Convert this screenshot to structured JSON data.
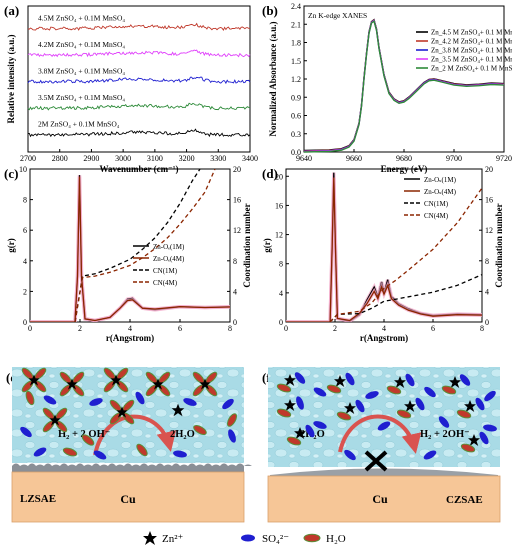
{
  "panels": {
    "a": {
      "label": "(a)"
    },
    "b": {
      "label": "(b)"
    },
    "c": {
      "label": "(c)"
    },
    "d": {
      "label": "(d)"
    },
    "e": {
      "label": "(e)"
    },
    "f": {
      "label": "(f)"
    }
  },
  "colors": {
    "black": "#000000",
    "red": "#c0392b",
    "darkred": "#8b2500",
    "magenta": "#e040fb",
    "blue": "#1f1fd0",
    "green": "#2e8b3a",
    "navy": "#1a237e",
    "electrolyte": "#a9dbe6",
    "cu": "#f6c697",
    "deposit": "#8a8f96",
    "arrow": "#d9534f"
  },
  "chart_data": [
    {
      "id": "a",
      "type": "line",
      "xlabel": "Wavenumber (cm⁻¹)",
      "ylabel": "Relative intensity (a.u.)",
      "xlim": [
        2700,
        3400
      ],
      "xticks": [
        2700,
        2800,
        2900,
        3000,
        3100,
        3200,
        3300,
        3400
      ],
      "series": [
        {
          "name": "4.5M ZnSO₄ + 0.1M MnSO₄",
          "color": "#c0392b",
          "offset": 5,
          "peak": 3220
        },
        {
          "name": "4.2M ZnSO₄ + 0.1M MnSO₄",
          "color": "#e040fb",
          "offset": 4,
          "peak": 3225
        },
        {
          "name": "3.8M ZnSO₄ + 0.1M MnSO₄",
          "color": "#1f1fd0",
          "offset": 3,
          "peak": 3230
        },
        {
          "name": "3.5M ZnSO₄ + 0.1M MnSO₄",
          "color": "#2e8b3a",
          "offset": 2,
          "peak": 3225
        },
        {
          "name": "2M ZnSO₄ + 0.1M MnSO₄",
          "color": "#000000",
          "offset": 1,
          "peak": 3220
        }
      ]
    },
    {
      "id": "b",
      "type": "line",
      "title": "Zn K-edge XANES",
      "xlabel": "Energy (eV)",
      "ylabel": "Normalized Absorbance (a.u.)",
      "xlim": [
        9640,
        9720
      ],
      "ylim": [
        0.0,
        2.4
      ],
      "xticks": [
        9640,
        9660,
        9680,
        9700,
        9720
      ],
      "yticks": [
        0.0,
        0.3,
        0.6,
        0.9,
        1.2,
        1.5,
        1.8,
        2.1,
        2.4
      ],
      "legend": "top-right",
      "series": [
        {
          "name": "Zn_4.5 M ZnSO₄+ 0.1 M MnSO₄",
          "color": "#000000"
        },
        {
          "name": "Zn_4.2 M ZnSO₄+ 0.1 M MnSO₄",
          "color": "#c0392b"
        },
        {
          "name": "Zn_3.8 M ZnSO₄+ 0.1 M MnSO₄",
          "color": "#1f1fd0"
        },
        {
          "name": "Zn_3.5 M ZnSO₄+ 0.1 M MnSO₄",
          "color": "#e040fb"
        },
        {
          "name": "Zn_2 M ZnSO₄+ 0.1 M MnSO₄",
          "color": "#2e8b3a"
        }
      ],
      "points": [
        [
          9640,
          0.0
        ],
        [
          9650,
          0.01
        ],
        [
          9655,
          0.03
        ],
        [
          9658,
          0.08
        ],
        [
          9660,
          0.18
        ],
        [
          9662,
          0.45
        ],
        [
          9663,
          0.75
        ],
        [
          9664,
          1.2
        ],
        [
          9665,
          1.6
        ],
        [
          9666,
          1.95
        ],
        [
          9667,
          2.12
        ],
        [
          9668,
          2.15
        ],
        [
          9669,
          2.0
        ],
        [
          9670,
          1.7
        ],
        [
          9672,
          1.25
        ],
        [
          9674,
          0.96
        ],
        [
          9676,
          0.85
        ],
        [
          9678,
          0.8
        ],
        [
          9680,
          0.82
        ],
        [
          9682,
          0.88
        ],
        [
          9685,
          1.0
        ],
        [
          9688,
          1.12
        ],
        [
          9690,
          1.17
        ],
        [
          9692,
          1.18
        ],
        [
          9695,
          1.15
        ],
        [
          9700,
          1.1
        ],
        [
          9705,
          1.08
        ],
        [
          9710,
          1.09
        ],
        [
          9715,
          1.11
        ],
        [
          9720,
          1.1
        ]
      ]
    },
    {
      "id": "c",
      "type": "line",
      "xlabel": "r(Angstrom)",
      "ylabel": "g(r)",
      "y2label": "Coordination number",
      "xlim": [
        0,
        8
      ],
      "ylim": [
        0,
        10
      ],
      "y2lim": [
        0,
        20
      ],
      "xticks": [
        0,
        2,
        4,
        6,
        8
      ],
      "yticks": [
        0,
        2,
        4,
        6,
        8,
        10
      ],
      "y2ticks": [
        0,
        4,
        8,
        12,
        16,
        20
      ],
      "legend": "right",
      "series": [
        {
          "name": "Zn-Oₑ(1M)",
          "color": "#000000",
          "dash": false,
          "axis": "left",
          "points": [
            [
              0,
              0
            ],
            [
              1.8,
              0
            ],
            [
              1.9,
              3
            ],
            [
              1.98,
              9.6
            ],
            [
              2.06,
              3
            ],
            [
              2.2,
              0.2
            ],
            [
              2.6,
              0.1
            ],
            [
              3.2,
              0.3
            ],
            [
              3.6,
              0.9
            ],
            [
              3.9,
              1.5
            ],
            [
              4.1,
              1.55
            ],
            [
              4.5,
              0.9
            ],
            [
              5,
              0.8
            ],
            [
              6,
              1.0
            ],
            [
              7,
              0.95
            ],
            [
              8,
              1.0
            ]
          ]
        },
        {
          "name": "Zn-Oₑ(4M)",
          "color": "#8b2500",
          "dash": false,
          "axis": "left",
          "points": [
            [
              0,
              0
            ],
            [
              1.8,
              0
            ],
            [
              1.9,
              3
            ],
            [
              1.98,
              9.5
            ],
            [
              2.06,
              3
            ],
            [
              2.2,
              0.2
            ],
            [
              2.6,
              0.1
            ],
            [
              3.2,
              0.3
            ],
            [
              3.6,
              0.9
            ],
            [
              3.9,
              1.4
            ],
            [
              4.1,
              1.45
            ],
            [
              4.5,
              0.9
            ],
            [
              5,
              0.85
            ],
            [
              6,
              1.0
            ],
            [
              7,
              0.95
            ],
            [
              8,
              0.98
            ]
          ]
        },
        {
          "name": "CN(1M)",
          "color": "#000000",
          "dash": true,
          "axis": "right",
          "points": [
            [
              1.8,
              0
            ],
            [
              2.1,
              6.0
            ],
            [
              2.6,
              6.3
            ],
            [
              3.2,
              7.0
            ],
            [
              4,
              8.2
            ],
            [
              4.5,
              9.5
            ],
            [
              5,
              11
            ],
            [
              5.5,
              13
            ],
            [
              6,
              15.5
            ],
            [
              6.5,
              18.5
            ],
            [
              6.8,
              20
            ]
          ]
        },
        {
          "name": "CN(4M)",
          "color": "#8b2500",
          "dash": true,
          "axis": "right",
          "points": [
            [
              1.8,
              0
            ],
            [
              2.1,
              5.8
            ],
            [
              2.6,
              6.0
            ],
            [
              3.2,
              6.5
            ],
            [
              4,
              7.4
            ],
            [
              4.5,
              8.4
            ],
            [
              5,
              9.6
            ],
            [
              5.5,
              11
            ],
            [
              6,
              12.8
            ],
            [
              6.5,
              14.8
            ],
            [
              7,
              17
            ],
            [
              7.4,
              20
            ]
          ]
        }
      ]
    },
    {
      "id": "d",
      "type": "line",
      "xlabel": "r(Angstrom)",
      "ylabel": "g(r)",
      "y2label": "Coordination number",
      "xlim": [
        0,
        8
      ],
      "ylim": [
        0,
        21
      ],
      "y2lim": [
        0,
        20
      ],
      "xticks": [
        0,
        2,
        4,
        6,
        8
      ],
      "yticks": [
        0,
        4,
        8,
        12,
        16,
        20
      ],
      "y2ticks": [
        0,
        4,
        8,
        12,
        16,
        20
      ],
      "legend": "top-right",
      "series": [
        {
          "name": "Zn-Oₛ(1M)",
          "color": "#000000",
          "dash": false,
          "axis": "left",
          "points": [
            [
              0,
              0
            ],
            [
              1.8,
              0
            ],
            [
              1.88,
              10
            ],
            [
              1.95,
              20.5
            ],
            [
              2.02,
              10
            ],
            [
              2.1,
              0.5
            ],
            [
              2.6,
              0.1
            ],
            [
              3.0,
              1
            ],
            [
              3.3,
              3
            ],
            [
              3.6,
              4.8
            ],
            [
              3.75,
              3.5
            ],
            [
              3.9,
              5.5
            ],
            [
              4.0,
              4
            ],
            [
              4.15,
              5.8
            ],
            [
              4.3,
              3.5
            ],
            [
              4.6,
              2.5
            ],
            [
              5,
              1.8
            ],
            [
              5.5,
              1.2
            ],
            [
              6,
              0.9
            ],
            [
              7,
              1.1
            ],
            [
              8,
              1.0
            ]
          ]
        },
        {
          "name": "Zn-Oₛ(4M)",
          "color": "#8b2500",
          "dash": false,
          "axis": "left",
          "points": [
            [
              0,
              0
            ],
            [
              1.8,
              0
            ],
            [
              1.88,
              10
            ],
            [
              1.95,
              19.8
            ],
            [
              2.02,
              10
            ],
            [
              2.1,
              0.5
            ],
            [
              2.6,
              0.2
            ],
            [
              3.0,
              1.2
            ],
            [
              3.3,
              2.5
            ],
            [
              3.6,
              4.2
            ],
            [
              3.75,
              3.2
            ],
            [
              3.9,
              4.8
            ],
            [
              4.0,
              3.8
            ],
            [
              4.15,
              5.0
            ],
            [
              4.3,
              3.2
            ],
            [
              4.6,
              2.3
            ],
            [
              5,
              1.6
            ],
            [
              5.5,
              1.1
            ],
            [
              6,
              0.8
            ],
            [
              7,
              1.0
            ],
            [
              8,
              0.95
            ]
          ]
        },
        {
          "name": "CN(1M)",
          "color": "#000000",
          "dash": true,
          "axis": "right",
          "points": [
            [
              1.8,
              0
            ],
            [
              2.1,
              1.0
            ],
            [
              3,
              1.1
            ],
            [
              3.5,
              1.8
            ],
            [
              4,
              2.7
            ],
            [
              4.5,
              3.0
            ],
            [
              5,
              3.3
            ],
            [
              6,
              3.9
            ],
            [
              7,
              4.8
            ],
            [
              8,
              6.2
            ]
          ]
        },
        {
          "name": "CN(4M)",
          "color": "#8b2500",
          "dash": true,
          "axis": "right",
          "points": [
            [
              1.8,
              0
            ],
            [
              2.1,
              1.0
            ],
            [
              3,
              1.4
            ],
            [
              3.5,
              2.5
            ],
            [
              4,
              4.4
            ],
            [
              4.5,
              5.5
            ],
            [
              5,
              6.8
            ],
            [
              6,
              9.5
            ],
            [
              7,
              13
            ],
            [
              8,
              17.5
            ]
          ]
        }
      ]
    }
  ],
  "scheme_e": {
    "reaction_left": "H₂ + 2 OH⁻",
    "reaction_right": "2H₂O",
    "substrate": "Cu",
    "electrolyte": "LZSAE"
  },
  "scheme_f": {
    "reaction_left": "2H₂O",
    "reaction_right": "H₂ + 2OH⁻",
    "substrate": "Cu",
    "electrolyte": "CZSAE"
  },
  "scheme_legend": {
    "zn": "Zn²⁺",
    "so4": "SO₄²⁻",
    "h2o": "H₂O"
  }
}
